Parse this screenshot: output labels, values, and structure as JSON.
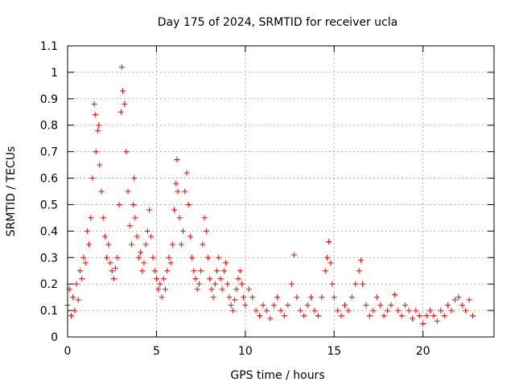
{
  "chart_data": {
    "type": "scatter",
    "title": "Day 175 of 2024, SRMTID for receiver ucla",
    "xlabel": "GPS time / hours",
    "ylabel": "SRMTID / TECUs",
    "xlim": [
      0,
      24
    ],
    "ylim": [
      0,
      1.1
    ],
    "xticks": [
      0,
      5,
      10,
      15,
      20
    ],
    "xtick_labels": [
      "0",
      "5",
      "10",
      "15",
      "20"
    ],
    "yticks": [
      0,
      0.1,
      0.2,
      0.3,
      0.4,
      0.5,
      0.6,
      0.7,
      0.8,
      0.9,
      1,
      1.1
    ],
    "ytick_labels": [
      "0",
      "0.1",
      "0.2",
      "0.3",
      "0.4",
      "0.5",
      "0.6",
      "0.7",
      "0.8",
      "0.9",
      "1",
      "1.1"
    ],
    "grid": true,
    "marker": "+",
    "color": "#ff0000",
    "series": [
      {
        "name": "SRMTID",
        "points": [
          [
            0.0,
            0.12
          ],
          [
            0.1,
            0.18
          ],
          [
            0.2,
            0.08
          ],
          [
            0.3,
            0.15
          ],
          [
            0.4,
            0.1
          ],
          [
            0.5,
            0.2
          ],
          [
            0.6,
            0.14
          ],
          [
            0.7,
            0.25
          ],
          [
            0.8,
            0.22
          ],
          [
            0.9,
            0.3
          ],
          [
            1.0,
            0.28
          ],
          [
            1.1,
            0.4
          ],
          [
            1.2,
            0.35
          ],
          [
            1.3,
            0.45
          ],
          [
            1.4,
            0.6
          ],
          [
            1.5,
            0.88
          ],
          [
            1.55,
            0.84
          ],
          [
            1.6,
            0.7
          ],
          [
            1.7,
            0.78
          ],
          [
            1.75,
            0.8
          ],
          [
            1.8,
            0.65
          ],
          [
            1.9,
            0.55
          ],
          [
            2.0,
            0.45
          ],
          [
            2.1,
            0.38
          ],
          [
            2.2,
            0.3
          ],
          [
            2.3,
            0.35
          ],
          [
            2.4,
            0.28
          ],
          [
            2.5,
            0.25
          ],
          [
            2.6,
            0.22
          ],
          [
            2.7,
            0.26
          ],
          [
            2.8,
            0.3
          ],
          [
            2.9,
            0.5
          ],
          [
            3.0,
            0.85
          ],
          [
            3.05,
            1.02
          ],
          [
            3.1,
            0.93
          ],
          [
            3.2,
            0.88
          ],
          [
            3.3,
            0.7
          ],
          [
            3.4,
            0.55
          ],
          [
            3.5,
            0.42
          ],
          [
            3.6,
            0.35
          ],
          [
            3.7,
            0.5
          ],
          [
            3.75,
            0.6
          ],
          [
            3.8,
            0.45
          ],
          [
            3.9,
            0.38
          ],
          [
            4.0,
            0.3
          ],
          [
            4.1,
            0.32
          ],
          [
            4.2,
            0.25
          ],
          [
            4.3,
            0.28
          ],
          [
            4.4,
            0.35
          ],
          [
            4.5,
            0.4
          ],
          [
            4.6,
            0.48
          ],
          [
            4.7,
            0.38
          ],
          [
            4.8,
            0.3
          ],
          [
            4.9,
            0.25
          ],
          [
            5.0,
            0.22
          ],
          [
            5.1,
            0.18
          ],
          [
            5.2,
            0.2
          ],
          [
            5.3,
            0.15
          ],
          [
            5.4,
            0.22
          ],
          [
            5.5,
            0.18
          ],
          [
            5.6,
            0.25
          ],
          [
            5.7,
            0.3
          ],
          [
            5.8,
            0.28
          ],
          [
            5.9,
            0.35
          ],
          [
            6.0,
            0.48
          ],
          [
            6.1,
            0.58
          ],
          [
            6.15,
            0.67
          ],
          [
            6.2,
            0.55
          ],
          [
            6.3,
            0.45
          ],
          [
            6.4,
            0.35
          ],
          [
            6.5,
            0.4
          ],
          [
            6.6,
            0.55
          ],
          [
            6.7,
            0.62
          ],
          [
            6.8,
            0.5
          ],
          [
            6.9,
            0.38
          ],
          [
            7.0,
            0.3
          ],
          [
            7.1,
            0.25
          ],
          [
            7.2,
            0.22
          ],
          [
            7.3,
            0.18
          ],
          [
            7.4,
            0.2
          ],
          [
            7.5,
            0.25
          ],
          [
            7.6,
            0.35
          ],
          [
            7.7,
            0.45
          ],
          [
            7.8,
            0.4
          ],
          [
            7.9,
            0.3
          ],
          [
            8.0,
            0.22
          ],
          [
            8.1,
            0.18
          ],
          [
            8.2,
            0.15
          ],
          [
            8.3,
            0.2
          ],
          [
            8.4,
            0.25
          ],
          [
            8.5,
            0.3
          ],
          [
            8.6,
            0.22
          ],
          [
            8.7,
            0.18
          ],
          [
            8.8,
            0.25
          ],
          [
            8.9,
            0.28
          ],
          [
            9.0,
            0.2
          ],
          [
            9.1,
            0.15
          ],
          [
            9.2,
            0.12
          ],
          [
            9.3,
            0.1
          ],
          [
            9.4,
            0.14
          ],
          [
            9.5,
            0.18
          ],
          [
            9.6,
            0.22
          ],
          [
            9.7,
            0.25
          ],
          [
            9.8,
            0.2
          ],
          [
            9.9,
            0.15
          ],
          [
            10.0,
            0.12
          ],
          [
            10.2,
            0.18
          ],
          [
            10.4,
            0.15
          ],
          [
            10.6,
            0.1
          ],
          [
            10.8,
            0.08
          ],
          [
            11.0,
            0.12
          ],
          [
            11.2,
            0.1
          ],
          [
            11.4,
            0.07
          ],
          [
            11.6,
            0.12
          ],
          [
            11.8,
            0.15
          ],
          [
            12.0,
            0.1
          ],
          [
            12.2,
            0.08
          ],
          [
            12.4,
            0.12
          ],
          [
            12.6,
            0.2
          ],
          [
            12.75,
            0.31
          ],
          [
            12.9,
            0.15
          ],
          [
            13.1,
            0.1
          ],
          [
            13.3,
            0.08
          ],
          [
            13.5,
            0.12
          ],
          [
            13.7,
            0.15
          ],
          [
            13.9,
            0.1
          ],
          [
            14.1,
            0.08
          ],
          [
            14.3,
            0.15
          ],
          [
            14.5,
            0.25
          ],
          [
            14.6,
            0.3
          ],
          [
            14.7,
            0.36
          ],
          [
            14.8,
            0.28
          ],
          [
            14.9,
            0.2
          ],
          [
            15.0,
            0.15
          ],
          [
            15.2,
            0.1
          ],
          [
            15.4,
            0.08
          ],
          [
            15.6,
            0.12
          ],
          [
            15.8,
            0.1
          ],
          [
            16.0,
            0.15
          ],
          [
            16.2,
            0.2
          ],
          [
            16.4,
            0.25
          ],
          [
            16.5,
            0.29
          ],
          [
            16.6,
            0.2
          ],
          [
            16.8,
            0.12
          ],
          [
            17.0,
            0.08
          ],
          [
            17.2,
            0.1
          ],
          [
            17.4,
            0.15
          ],
          [
            17.6,
            0.12
          ],
          [
            17.8,
            0.08
          ],
          [
            18.0,
            0.1
          ],
          [
            18.2,
            0.12
          ],
          [
            18.4,
            0.16
          ],
          [
            18.6,
            0.1
          ],
          [
            18.8,
            0.08
          ],
          [
            19.0,
            0.12
          ],
          [
            19.2,
            0.1
          ],
          [
            19.4,
            0.07
          ],
          [
            19.6,
            0.1
          ],
          [
            19.8,
            0.08
          ],
          [
            20.0,
            0.05
          ],
          [
            20.2,
            0.08
          ],
          [
            20.4,
            0.1
          ],
          [
            20.6,
            0.08
          ],
          [
            20.8,
            0.06
          ],
          [
            21.0,
            0.1
          ],
          [
            21.2,
            0.08
          ],
          [
            21.4,
            0.12
          ],
          [
            21.6,
            0.1
          ],
          [
            21.8,
            0.14
          ],
          [
            22.0,
            0.15
          ],
          [
            22.2,
            0.12
          ],
          [
            22.4,
            0.1
          ],
          [
            22.6,
            0.14
          ],
          [
            22.8,
            0.08
          ]
        ]
      }
    ]
  }
}
